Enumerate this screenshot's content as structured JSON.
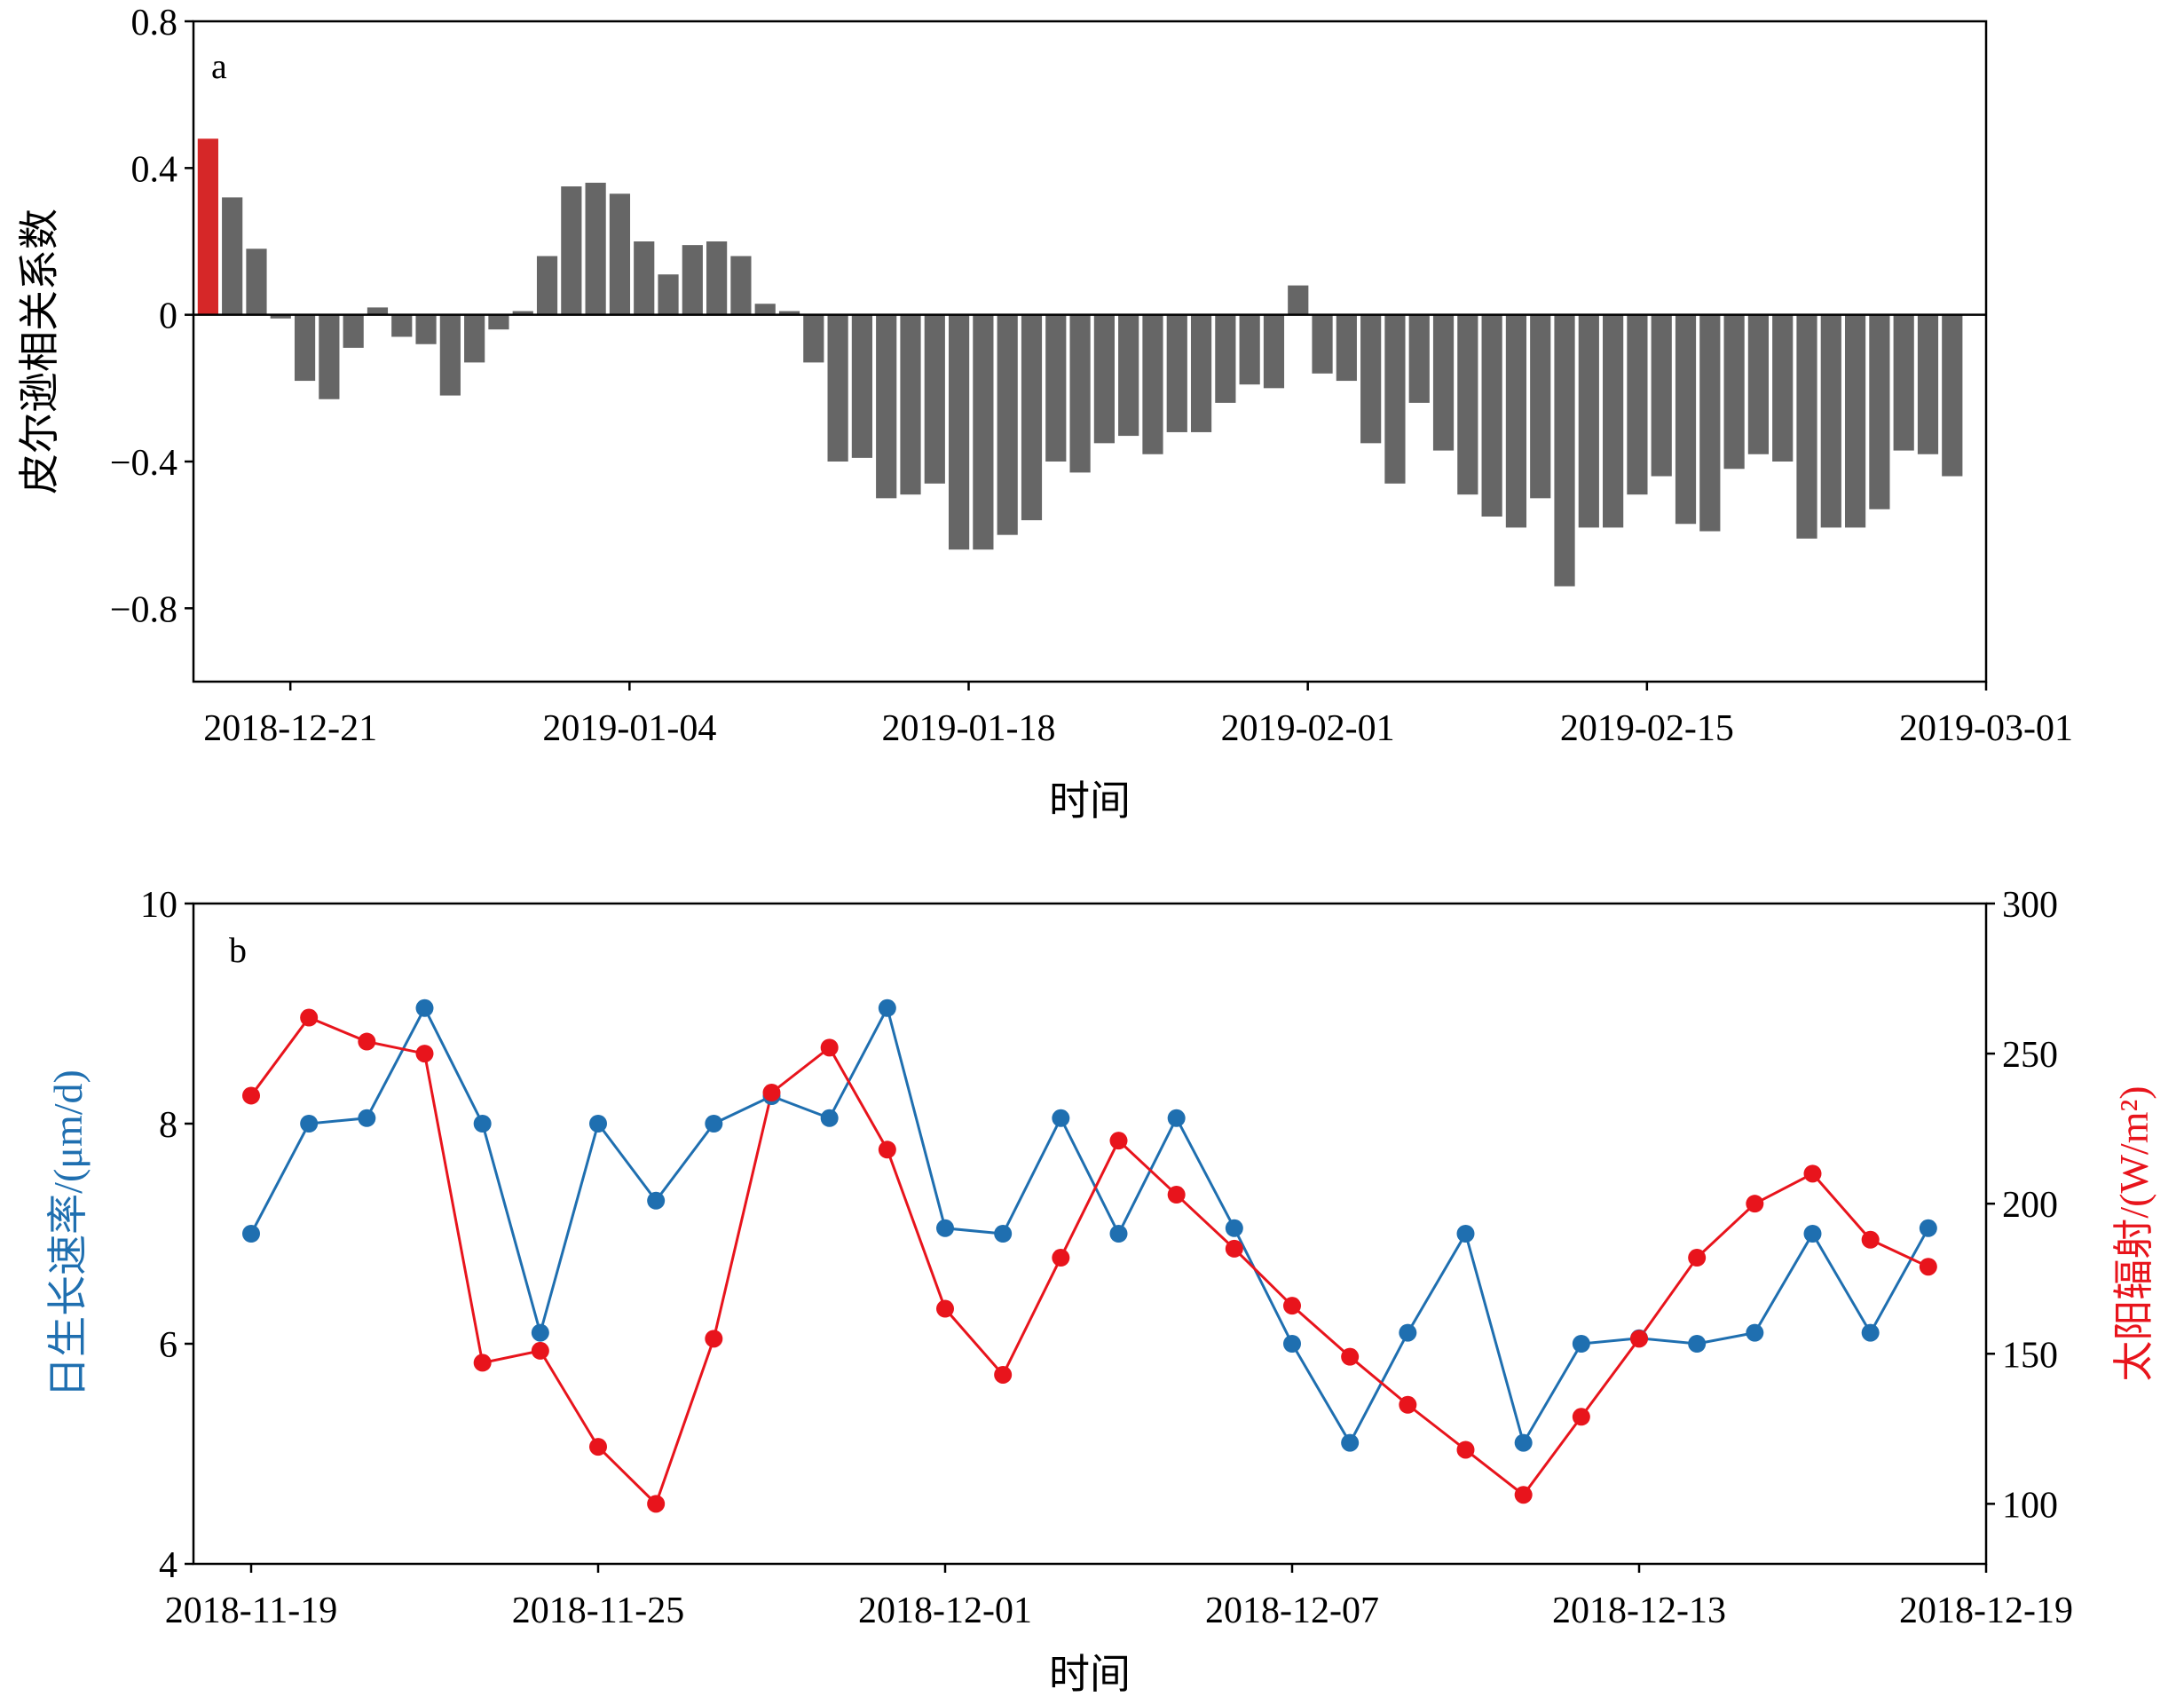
{
  "chart_data": [
    {
      "panel": "a",
      "type": "bar",
      "xlabel": "时间",
      "ylabel": "皮尔逊相关系数",
      "ylim": [
        -1.0,
        0.8
      ],
      "yticks": [
        -0.8,
        -0.4,
        0,
        0.4,
        0.8
      ],
      "ytick_labels": [
        "−0.8",
        "−0.4",
        "0",
        "0.4",
        "0.8"
      ],
      "xticks": [
        "2018-12-21",
        "2019-01-04",
        "2019-01-18",
        "2019-02-01",
        "2019-02-15",
        "2019-03-01"
      ],
      "start_date": "2018-12-17",
      "highlight_color": "#d62728",
      "bar_color": "#666666",
      "values": [
        0.48,
        0.32,
        0.18,
        -0.01,
        -0.18,
        -0.23,
        -0.09,
        0.02,
        -0.06,
        -0.08,
        -0.22,
        -0.13,
        -0.04,
        0.01,
        0.16,
        0.35,
        0.36,
        0.33,
        0.2,
        0.11,
        0.19,
        0.2,
        0.16,
        0.03,
        0.01,
        -0.13,
        -0.4,
        -0.39,
        -0.5,
        -0.49,
        -0.46,
        -0.64,
        -0.64,
        -0.6,
        -0.56,
        -0.4,
        -0.43,
        -0.35,
        -0.33,
        -0.38,
        -0.32,
        -0.32,
        -0.24,
        -0.19,
        -0.2,
        0.08,
        -0.16,
        -0.18,
        -0.35,
        -0.46,
        -0.24,
        -0.37,
        -0.49,
        -0.55,
        -0.58,
        -0.5,
        -0.74,
        -0.58,
        -0.58,
        -0.49,
        -0.44,
        -0.57,
        -0.59,
        -0.42,
        -0.38,
        -0.4,
        -0.61,
        -0.58,
        -0.58,
        -0.53,
        -0.37,
        -0.38,
        -0.44
      ]
    },
    {
      "panel": "b",
      "type": "line",
      "xlabel": "时间",
      "xticks": [
        "2018-11-19",
        "2018-11-25",
        "2018-12-01",
        "2018-12-07",
        "2018-12-13",
        "2018-12-19"
      ],
      "x": [
        "2018-11-19",
        "2018-11-20",
        "2018-11-21",
        "2018-11-22",
        "2018-11-23",
        "2018-11-24",
        "2018-11-25",
        "2018-11-26",
        "2018-11-27",
        "2018-11-28",
        "2018-11-29",
        "2018-11-30",
        "2018-12-01",
        "2018-12-02",
        "2018-12-03",
        "2018-12-04",
        "2018-12-05",
        "2018-12-06",
        "2018-12-07",
        "2018-12-08",
        "2018-12-09",
        "2018-12-10",
        "2018-12-11",
        "2018-12-12",
        "2018-12-13",
        "2018-12-14",
        "2018-12-15",
        "2018-12-16",
        "2018-12-17",
        "2018-12-18"
      ],
      "series": [
        {
          "name": "日生长速率/(μm/d)",
          "axis": "left",
          "color": "#1f6fb0",
          "ylim": [
            4,
            10
          ],
          "yticks": [
            4,
            6,
            8,
            10
          ],
          "values": [
            7.0,
            8.0,
            8.05,
            9.05,
            8.0,
            6.1,
            8.0,
            7.3,
            8.0,
            8.25,
            8.05,
            9.05,
            7.05,
            7.0,
            8.05,
            7.0,
            8.05,
            7.05,
            6.0,
            5.1,
            6.1,
            7.0,
            5.1,
            6.0,
            6.05,
            6.0,
            6.1,
            7.0,
            6.1,
            7.05
          ]
        },
        {
          "name": "太阳辐射/(W/m²)",
          "axis": "right",
          "color": "#e8141c",
          "ylim": [
            80,
            300
          ],
          "yticks": [
            100,
            150,
            200,
            250,
            300
          ],
          "values": [
            236,
            262,
            254,
            250,
            147,
            151,
            119,
            100,
            155,
            237,
            252,
            218,
            165,
            143,
            182,
            221,
            203,
            185,
            166,
            149,
            133,
            118,
            103,
            129,
            155,
            182,
            200,
            210,
            188,
            179
          ]
        }
      ]
    }
  ]
}
